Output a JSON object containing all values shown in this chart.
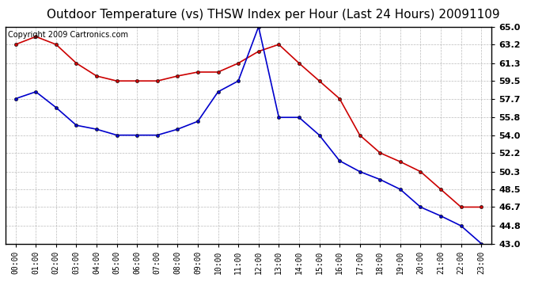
{
  "title": "Outdoor Temperature (vs) THSW Index per Hour (Last 24 Hours) 20091109",
  "copyright": "Copyright 2009 Cartronics.com",
  "x_labels": [
    "00:00",
    "01:00",
    "02:00",
    "03:00",
    "04:00",
    "05:00",
    "06:00",
    "07:00",
    "08:00",
    "09:00",
    "10:00",
    "11:00",
    "12:00",
    "13:00",
    "14:00",
    "15:00",
    "16:00",
    "17:00",
    "18:00",
    "19:00",
    "20:00",
    "21:00",
    "22:00",
    "23:00"
  ],
  "temp_red": [
    63.2,
    64.0,
    63.2,
    61.3,
    60.0,
    59.5,
    59.5,
    59.5,
    60.0,
    60.4,
    60.4,
    61.3,
    62.5,
    63.2,
    61.3,
    59.5,
    57.7,
    54.0,
    52.2,
    51.3,
    50.3,
    48.5,
    46.7,
    46.7
  ],
  "temp_blue": [
    57.7,
    58.4,
    56.8,
    55.0,
    54.6,
    54.0,
    54.0,
    54.0,
    54.6,
    55.4,
    58.4,
    59.5,
    65.0,
    55.8,
    55.8,
    54.0,
    51.4,
    50.3,
    49.5,
    48.5,
    46.7,
    45.8,
    44.8,
    43.0
  ],
  "y_ticks": [
    43.0,
    44.8,
    46.7,
    48.5,
    50.3,
    52.2,
    54.0,
    55.8,
    57.7,
    59.5,
    61.3,
    63.2,
    65.0
  ],
  "y_min": 43.0,
  "y_max": 65.0,
  "red_color": "#cc0000",
  "blue_color": "#0000cc",
  "bg_color": "#ffffff",
  "grid_color": "#aaaaaa",
  "title_fontsize": 11,
  "copyright_fontsize": 7
}
